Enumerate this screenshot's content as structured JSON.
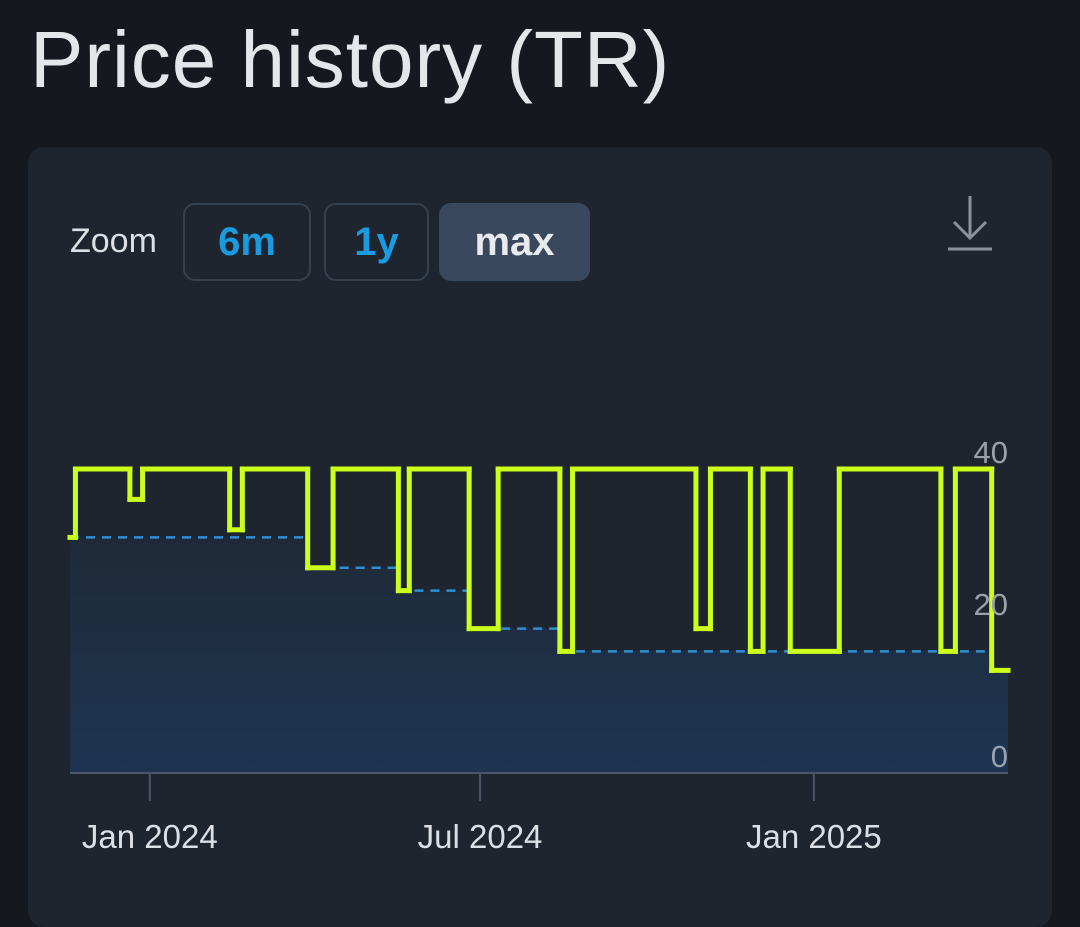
{
  "header": {
    "title": "Price history (TR)"
  },
  "zoom": {
    "label": "Zoom",
    "buttons": [
      "6m",
      "1y",
      "max"
    ]
  },
  "chart_data": {
    "type": "step",
    "xlim": [
      -44,
      473
    ],
    "ylim": [
      0,
      40
    ],
    "xticks": [
      {
        "value": 0,
        "label": "Jan 2024"
      },
      {
        "value": 182,
        "label": "Jul 2024"
      },
      {
        "value": 366,
        "label": "Jan 2025"
      }
    ],
    "yticks": [
      0,
      20,
      40
    ],
    "series": [
      {
        "color": "#ccff1a",
        "x": [
          -44,
          -41,
          -11,
          -4,
          44,
          51,
          87,
          101,
          137,
          143,
          176,
          192,
          226,
          233,
          301,
          309,
          331,
          338,
          353,
          380,
          436,
          444,
          464
        ],
        "values": [
          31,
          40,
          36,
          40,
          32,
          40,
          27,
          40,
          24,
          40,
          19,
          40,
          16,
          40,
          19,
          40,
          16,
          40,
          16,
          40,
          16,
          40,
          13.5
        ]
      },
      {
        "color": "#2b8fd6",
        "dashed": true,
        "area": true,
        "x": [
          -44,
          87,
          137,
          176,
          226,
          464
        ],
        "values": [
          31,
          27,
          24,
          19,
          16,
          13.5
        ]
      }
    ]
  }
}
